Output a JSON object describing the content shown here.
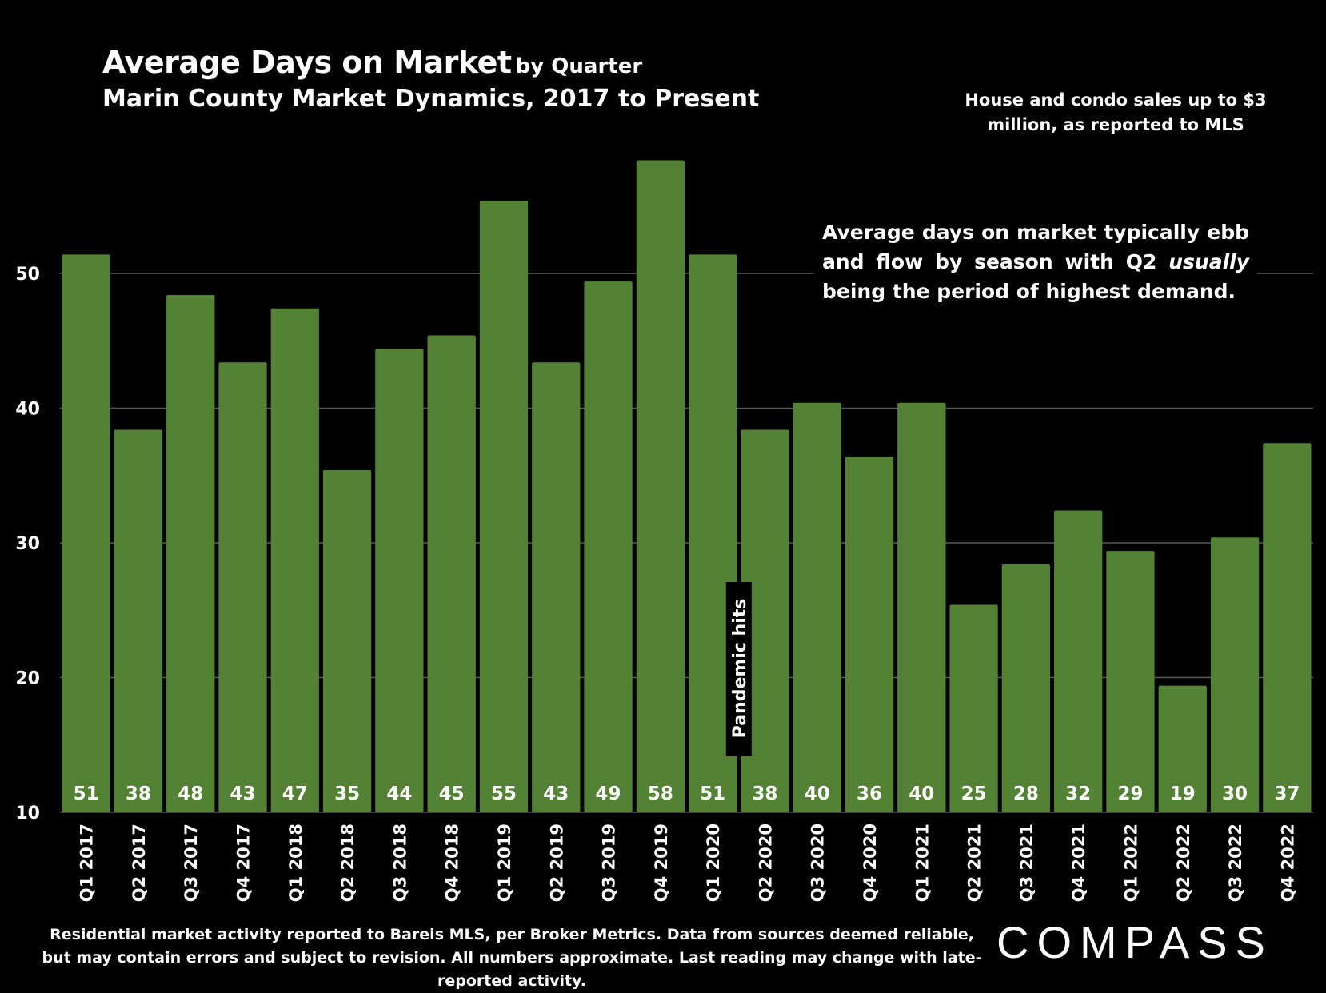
{
  "header": {
    "title_main": "Average Days on Market",
    "title_suffix": "by Quarter",
    "subtitle": "Marin County Market Dynamics, 2017 to Present",
    "scope_note": "House and condo sales up to $3 million, as reported to MLS"
  },
  "annotation": {
    "text_before": "Average days on market typically ebb and flow by season with Q2 ",
    "text_emphasis": "usually",
    "text_after": " being the period of highest demand."
  },
  "footnote": "Residential market activity reported to Bareis MLS, per Broker Metrics. Data from sources deemed reliable, but may contain errors and subject to revision. All numbers approximate. Last reading may change with late-reported activity.",
  "logo_text": "COMPASS",
  "colors": {
    "background": "#000000",
    "bar": "#548235",
    "text": "#ffffff",
    "gridline": "#595959"
  },
  "chart_data": {
    "type": "bar",
    "title": "Average Days on Market by Quarter",
    "xlabel": "",
    "ylabel": "",
    "ylim": [
      10,
      58
    ],
    "yticks": [
      10,
      20,
      30,
      40,
      50
    ],
    "grid": true,
    "categories": [
      "Q1 2017",
      "Q2 2017",
      "Q3 2017",
      "Q4 2017",
      "Q1 2018",
      "Q2 2018",
      "Q3 2018",
      "Q4 2018",
      "Q1 2019",
      "Q2 2019",
      "Q3 2019",
      "Q4 2019",
      "Q1 2020",
      "Q2 2020",
      "Q3 2020",
      "Q4 2020",
      "Q1 2021",
      "Q2 2021",
      "Q3 2021",
      "Q4 2021",
      "Q1 2022",
      "Q2 2022",
      "Q3 2022",
      "Q4 2022"
    ],
    "values": [
      51.4,
      38.4,
      48.4,
      43.4,
      47.4,
      35.4,
      44.4,
      45.4,
      55.4,
      43.4,
      49.4,
      58.4,
      51.4,
      38.4,
      40.4,
      36.4,
      40.4,
      25.4,
      28.4,
      32.4,
      29.4,
      19.4,
      30.4,
      37.4
    ],
    "data_labels": [
      "51",
      "38",
      "48",
      "43",
      "47",
      "35",
      "44",
      "45",
      "55",
      "43",
      "49",
      "58",
      "51",
      "38",
      "40",
      "36",
      "40",
      "25",
      "28",
      "32",
      "29",
      "19",
      "30",
      "37"
    ],
    "annotations": [
      {
        "text": "Pandemic hits",
        "category": "Q1 2020"
      }
    ]
  }
}
